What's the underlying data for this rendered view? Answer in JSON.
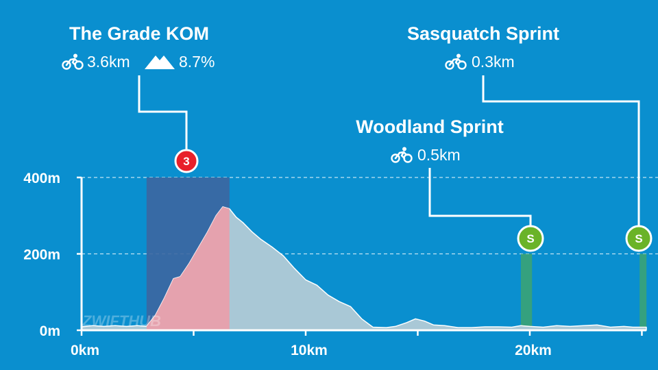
{
  "chart_data": {
    "type": "area",
    "xlabel": "",
    "ylabel": "",
    "x_unit": "km",
    "y_unit": "m",
    "xlim": [
      0,
      25.2
    ],
    "ylim": [
      0,
      400
    ],
    "x_ticks": [
      0,
      10,
      20
    ],
    "x_tick_labels": [
      "0km",
      "10km",
      "20km"
    ],
    "y_ticks": [
      0,
      200,
      400
    ],
    "y_tick_labels": [
      "0m",
      "200m",
      "400m"
    ],
    "grid": "dashed horizontal at 200m and 400m",
    "series": [
      {
        "x": [
          0,
          0.5,
          1.0,
          1.5,
          2.0,
          2.5,
          2.9,
          3.3,
          3.7,
          4.1,
          4.4,
          4.8,
          5.2,
          5.6,
          6.0,
          6.3,
          6.6,
          6.9,
          7.2,
          7.6,
          8.0,
          8.5,
          9.0,
          9.5,
          10.0,
          10.5,
          11.0,
          11.5,
          12.0,
          12.5,
          13.0,
          13.6,
          14.0,
          14.5,
          14.9,
          15.3,
          15.7,
          16.2,
          16.8,
          17.4,
          18.0,
          18.6,
          19.2,
          19.6,
          20.0,
          20.6,
          21.2,
          21.8,
          22.4,
          23.0,
          23.6,
          24.2,
          24.6,
          25.2
        ],
        "y": [
          9,
          12,
          10,
          12,
          10,
          12,
          10,
          40,
          85,
          135,
          140,
          175,
          215,
          255,
          300,
          323,
          318,
          296,
          282,
          258,
          238,
          218,
          195,
          162,
          132,
          118,
          92,
          75,
          62,
          30,
          8,
          7,
          10,
          20,
          30,
          24,
          14,
          12,
          7,
          7,
          9,
          9,
          8,
          12,
          10,
          8,
          12,
          10,
          12,
          14,
          8,
          10,
          8,
          8
        ]
      }
    ],
    "segments": [
      {
        "name": "The Grade KOM",
        "type": "kom",
        "badge": "3",
        "distance_label": "3.6km",
        "gradient_label": "8.7%",
        "start_km": 2.9,
        "end_km": 6.6,
        "top_m": 400,
        "color": "#e8a0ac"
      },
      {
        "name": "Woodland Sprint",
        "type": "sprint",
        "badge": "S",
        "distance_label": "0.5km",
        "start_km": 19.6,
        "end_km": 20.1,
        "top_m": 200,
        "color": "#3aa374"
      },
      {
        "name": "Sasquatch Sprint",
        "type": "sprint",
        "badge": "S",
        "distance_label": "0.3km",
        "start_km": 24.9,
        "end_km": 25.2,
        "top_m": 200,
        "color": "#3aa374"
      }
    ]
  },
  "colors": {
    "background": "#0a8fcf",
    "profile_fill": "#a9c8d6",
    "kom_box": "#3c66a0",
    "kom_badge": "#e8202a",
    "sprint_badge": "#6ab328",
    "axis": "#ffffff"
  },
  "icons": {
    "distance": "cyclist-icon",
    "gradient": "mountain-icon"
  },
  "watermark": {
    "part1": "ZWIFT",
    "part2": "HUB"
  }
}
